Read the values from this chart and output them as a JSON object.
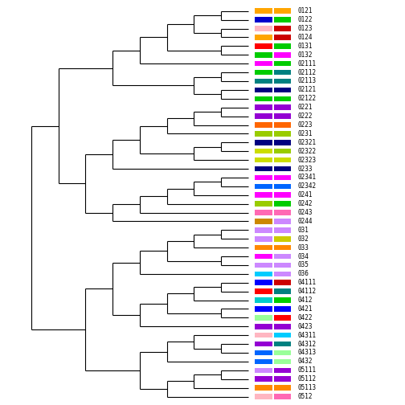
{
  "labels": [
    "0121",
    "0122",
    "0123",
    "0124",
    "0131",
    "0132",
    "02111",
    "02112",
    "02113",
    "02121",
    "02122",
    "0221",
    "0222",
    "0223",
    "0231",
    "02321",
    "02322",
    "02323",
    "0233",
    "02341",
    "02342",
    "0241",
    "0242",
    "0243",
    "0244",
    "031",
    "032",
    "033",
    "034",
    "035",
    "036",
    "04111",
    "04112",
    "0412",
    "0421",
    "0422",
    "0423",
    "04311",
    "04312",
    "04313",
    "0432",
    "05111",
    "05112",
    "05113",
    "0512"
  ],
  "box1_colors": [
    "#FFA500",
    "#0000CD",
    "#FFB6C1",
    "#FFA500",
    "#FF0000",
    "#00CC00",
    "#FF00FF",
    "#00CC00",
    "#008080",
    "#000080",
    "#00CC00",
    "#9400D3",
    "#9400D3",
    "#FF6600",
    "#99CC00",
    "#000080",
    "#CCDD00",
    "#CCDD00",
    "#000080",
    "#FF00FF",
    "#0066FF",
    "#FF00FF",
    "#99CC00",
    "#FF69B4",
    "#CC8800",
    "#CC88FF",
    "#CC88FF",
    "#FF8800",
    "#FF00FF",
    "#CC88FF",
    "#00CCFF",
    "#0000FF",
    "#FF0000",
    "#00CCCC",
    "#0000FF",
    "#99FF99",
    "#9400D3",
    "#FFB6C1",
    "#9400D3",
    "#0066FF",
    "#0066FF",
    "#CC88FF",
    "#9400D3",
    "#FF8800",
    "#FFB6C1"
  ],
  "box2_colors": [
    "#FFA500",
    "#00CC00",
    "#CC0000",
    "#CC0000",
    "#00CC00",
    "#FF00FF",
    "#00CC00",
    "#008080",
    "#008080",
    "#000080",
    "#00CC00",
    "#9400D3",
    "#9400D3",
    "#FF6600",
    "#99CC00",
    "#000080",
    "#99CC00",
    "#CCDD00",
    "#000080",
    "#FF00FF",
    "#0066FF",
    "#FF00FF",
    "#00CC00",
    "#FF69B4",
    "#CC88FF",
    "#CC88FF",
    "#CCCC00",
    "#FF8800",
    "#CC88FF",
    "#CC88FF",
    "#CC88FF",
    "#CC0000",
    "#008080",
    "#00CC00",
    "#0000FF",
    "#FF0000",
    "#9400D3",
    "#00CCFF",
    "#008080",
    "#99FF99",
    "#99FF99",
    "#9400D3",
    "#9400D3",
    "#FF8800",
    "#FF69B4"
  ],
  "figsize": [
    5.04,
    5.04
  ],
  "dpi": 100
}
